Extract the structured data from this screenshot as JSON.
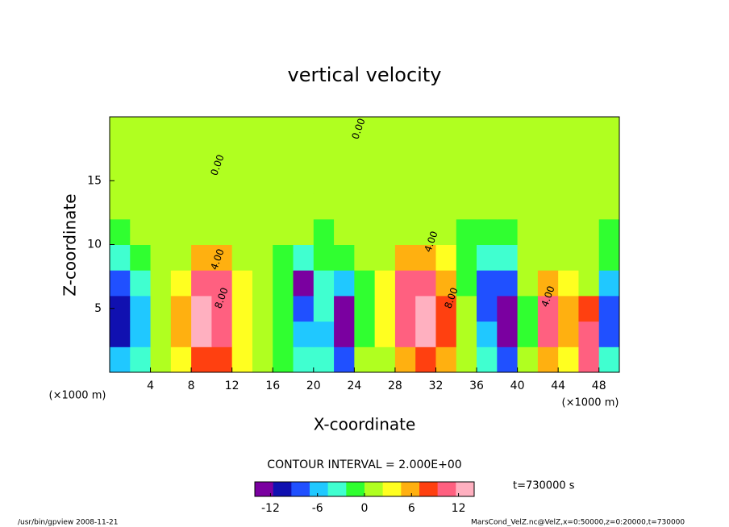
{
  "chart_data": {
    "type": "contour",
    "title": "vertical velocity",
    "x_label": "X-coordinate",
    "y_label": "Z-coordinate",
    "x_unit": "(×1000 m)",
    "y_unit": "(×1000 m)",
    "xlim": [
      0,
      50
    ],
    "xticks": [
      4,
      8,
      12,
      16,
      20,
      24,
      28,
      32,
      36,
      40,
      44,
      48
    ],
    "ylim": [
      0,
      20
    ],
    "yticks": [
      5,
      10,
      15
    ],
    "x": [
      1,
      3,
      5,
      7,
      9,
      11,
      13,
      15,
      17,
      19,
      21,
      23,
      25,
      27,
      29,
      31,
      33,
      35,
      37,
      39,
      41,
      43,
      45,
      47,
      49
    ],
    "y": [
      1,
      3,
      5,
      7,
      9,
      11,
      13,
      15,
      17,
      19
    ],
    "z": [
      [
        -6,
        -4,
        0,
        4,
        8,
        8,
        4,
        0,
        -2,
        -4,
        -4,
        -8,
        0,
        2,
        6,
        8,
        6,
        0,
        -4,
        -8,
        0,
        6,
        4,
        10,
        -4
      ],
      [
        -10,
        -6,
        0,
        6,
        12,
        10,
        4,
        0,
        -2,
        -6,
        -6,
        -14,
        -2,
        4,
        10,
        12,
        8,
        0,
        -6,
        -14,
        -2,
        10,
        6,
        10,
        -8
      ],
      [
        -10,
        -6,
        0,
        6,
        12,
        10,
        4,
        0,
        -2,
        -8,
        -4,
        -14,
        -2,
        4,
        10,
        12,
        8,
        0,
        -8,
        -14,
        -2,
        10,
        6,
        8,
        -8
      ],
      [
        -8,
        -4,
        0,
        4,
        10,
        10,
        4,
        0,
        -2,
        -12,
        -4,
        -6,
        -2,
        4,
        10,
        10,
        6,
        -2,
        -8,
        -8,
        0,
        6,
        4,
        2,
        -6
      ],
      [
        -4,
        -2,
        0,
        2,
        6,
        6,
        2,
        0,
        -2,
        -4,
        -2,
        -2,
        0,
        2,
        6,
        6,
        4,
        -2,
        -4,
        -4,
        0,
        2,
        2,
        0,
        -2
      ],
      [
        -2,
        0,
        0,
        0,
        2,
        2,
        0,
        0,
        0,
        2,
        -2,
        0,
        0,
        0,
        2,
        2,
        0,
        -2,
        -2,
        -2,
        2,
        2,
        0,
        0,
        -2
      ],
      [
        0,
        0,
        0,
        0,
        0,
        0,
        0,
        0,
        0,
        0,
        0,
        0,
        0,
        0,
        0,
        0,
        0,
        0,
        0,
        0,
        0,
        0,
        0,
        0,
        0
      ],
      [
        0,
        0,
        0,
        0,
        0,
        0,
        0,
        0,
        0,
        0,
        0,
        0,
        0,
        0,
        0,
        0,
        0,
        0,
        0,
        0,
        0,
        0,
        0,
        0,
        0
      ],
      [
        0,
        0,
        0,
        0,
        0,
        0,
        0,
        0,
        0,
        0,
        0,
        0,
        0,
        0,
        0,
        0,
        0,
        0,
        0,
        0,
        0,
        0,
        0,
        0,
        0
      ],
      [
        0,
        0,
        0,
        0,
        0,
        0,
        0,
        0,
        0,
        0,
        0,
        0,
        0,
        0,
        0,
        0,
        0,
        0,
        0,
        0,
        0,
        0,
        0,
        0,
        0
      ]
    ],
    "clim": [
      -14,
      14
    ],
    "colorbar_ticks": [
      -12,
      -6,
      0,
      6,
      12
    ],
    "colormap": [
      "#7a00a0",
      "#1010b0",
      "#2050ff",
      "#20c8ff",
      "#40ffd0",
      "#30ff30",
      "#b0ff20",
      "#ffff20",
      "#ffb010",
      "#ff4010",
      "#ff6080",
      "#ffb0c0"
    ],
    "contour_labels": [
      "0.00",
      "4.00",
      "8.00"
    ],
    "contour_interval": "CONTOUR INTERVAL = 2.000E+00",
    "time_label": "t=730000 s",
    "footer_left": "/usr/bin/gpview  2008-11-21",
    "footer_right": "MarsCond_VelZ.nc@VelZ,x=0:50000,z=0:20000,t=730000"
  }
}
